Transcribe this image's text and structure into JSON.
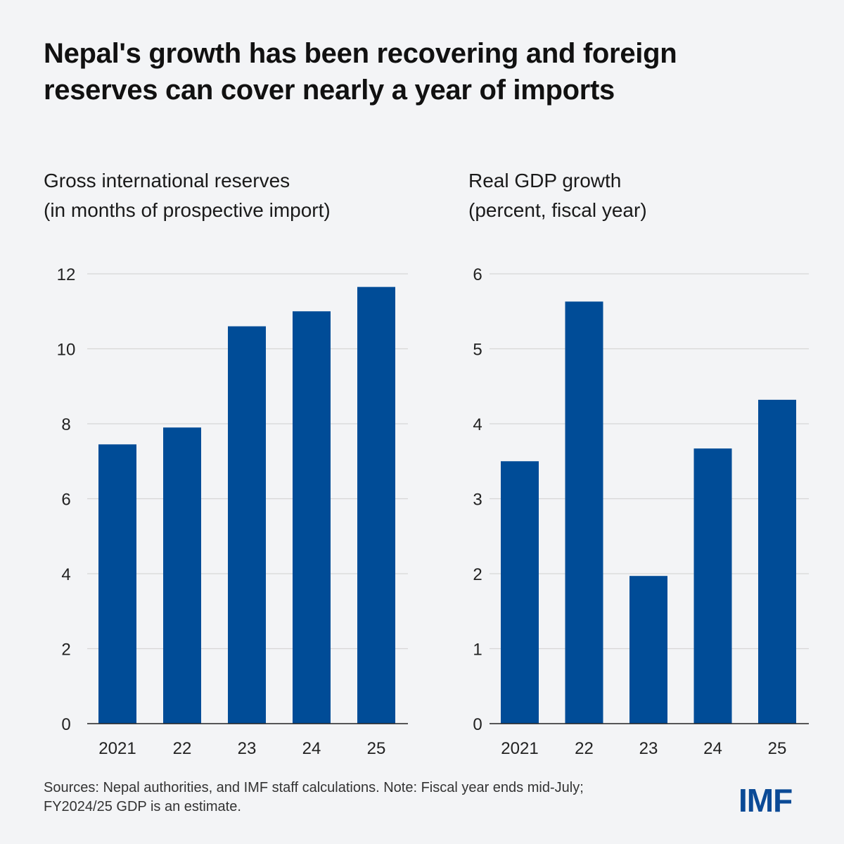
{
  "title_lines": [
    "Nepal's growth has been recovering and foreign",
    "reserves can cover nearly a year of imports"
  ],
  "footer_lines": [
    "Sources: Nepal authorities, and IMF staff calculations.  Note: Fiscal year ends mid-July;",
    "FY2024/25 GDP is an estimate."
  ],
  "logo": "IMF",
  "colors": {
    "bar": "#004c97",
    "grid": "#d6d6d6",
    "axis": "#222222"
  },
  "chart_data": [
    {
      "type": "bar",
      "title": "Gross international reserves",
      "subtitle": "(in months of prospective import)",
      "categories": [
        "2021",
        "22",
        "23",
        "24",
        "25"
      ],
      "values": [
        7.45,
        7.9,
        10.6,
        11.0,
        11.65
      ],
      "ylim": [
        0,
        12
      ],
      "yticks": [
        "0",
        "2",
        "4",
        "6",
        "8",
        "10",
        "12"
      ],
      "grid": true
    },
    {
      "type": "bar",
      "title": "Real GDP growth",
      "subtitle": "(percent, fiscal year)",
      "categories": [
        "2021",
        "22",
        "23",
        "24",
        "25"
      ],
      "values": [
        3.5,
        5.63,
        1.97,
        3.67,
        4.32
      ],
      "ylim": [
        0,
        6
      ],
      "yticks": [
        "0",
        "1",
        "2",
        "3",
        "4",
        "5",
        "6"
      ],
      "grid": true
    }
  ]
}
